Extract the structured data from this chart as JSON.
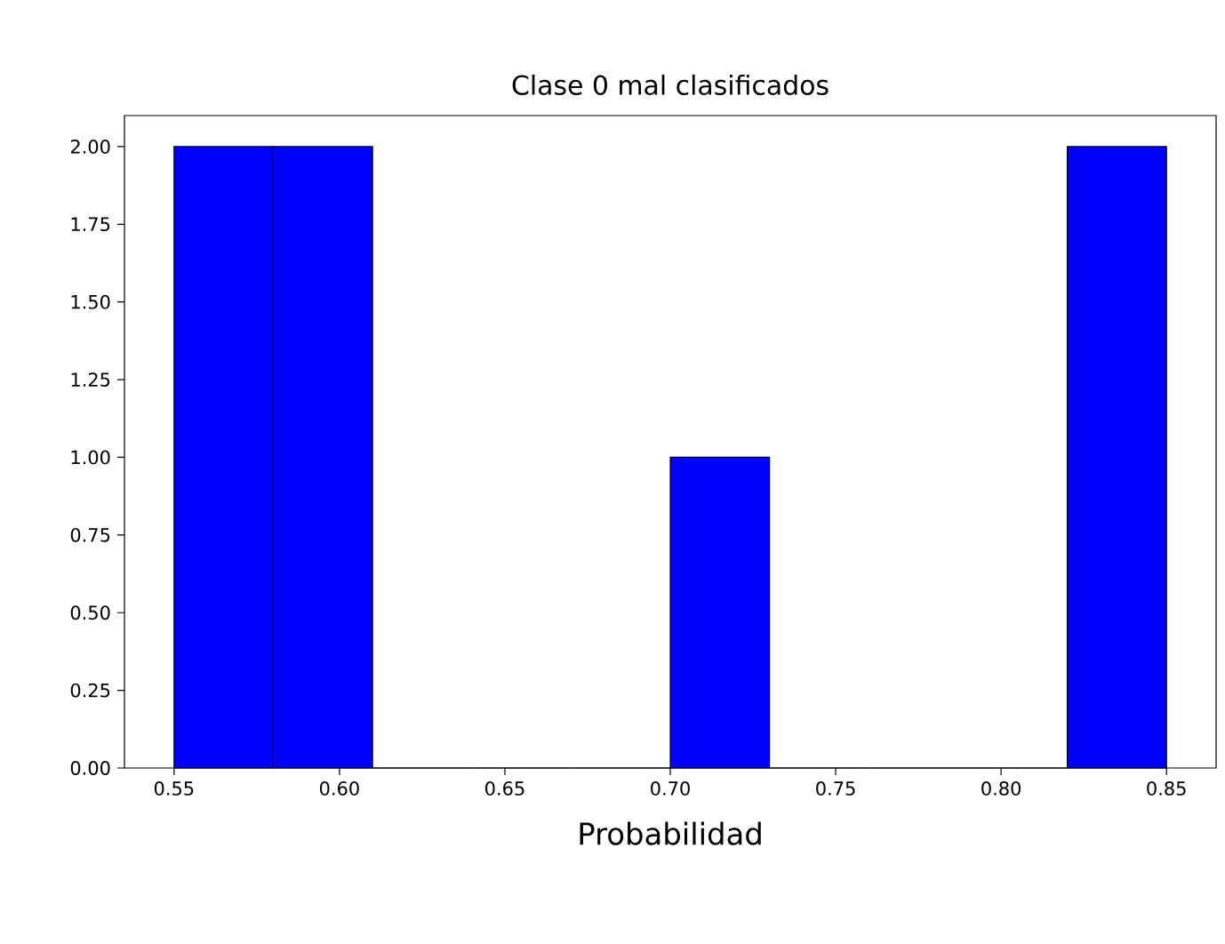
{
  "chart_data": {
    "type": "histogram",
    "title": "Clase 0 mal clasificados",
    "xlabel": "Probabilidad",
    "bins": [
      0.55,
      0.58,
      0.61,
      0.64,
      0.67,
      0.7,
      0.73,
      0.76,
      0.79,
      0.82,
      0.85
    ],
    "values": [
      2,
      2,
      0,
      0,
      0,
      1,
      0,
      0,
      0,
      2
    ],
    "color": "#0000ff",
    "xlim": [
      0.535,
      0.865
    ],
    "xticks": [
      0.55,
      {
        "value": 0.6,
        "label": "0.60"
      },
      0.65,
      {
        "value": 0.7,
        "label": "0.70"
      },
      0.75,
      {
        "value": 0.8,
        "label": "0.80"
      },
      0.85
    ],
    "ylim": [
      0,
      2.1
    ],
    "yticks": [
      {
        "value": 0,
        "label": "0.00"
      },
      {
        "value": 0.25,
        "label": "0.25"
      },
      {
        "value": 0.5,
        "label": "0.50"
      },
      {
        "value": 0.75,
        "label": "0.75"
      },
      {
        "value": 1,
        "label": "1.00"
      },
      {
        "value": 1.25,
        "label": "1.25"
      },
      {
        "value": 1.5,
        "label": "1.50"
      },
      {
        "value": 1.75,
        "label": "1.75"
      },
      {
        "value": 2,
        "label": "2.00"
      }
    ],
    "grid": false
  }
}
